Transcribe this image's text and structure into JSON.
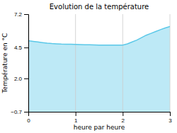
{
  "chart_data": {
    "type": "area",
    "title": "Evolution de la température",
    "x_label": "heure par heure",
    "y_label": "Température en °C",
    "x": [
      0,
      0.1,
      0.2,
      0.3,
      0.4,
      0.5,
      0.6,
      0.7,
      0.8,
      0.9,
      1.0,
      1.1,
      1.2,
      1.3,
      1.4,
      1.5,
      1.6,
      1.7,
      1.8,
      1.9,
      2.0,
      2.1,
      2.2,
      2.3,
      2.4,
      2.5,
      2.6,
      2.7,
      2.8,
      2.9,
      3.0
    ],
    "values": [
      5.05,
      5.0,
      4.95,
      4.9,
      4.85,
      4.82,
      4.8,
      4.78,
      4.77,
      4.76,
      4.75,
      4.74,
      4.73,
      4.72,
      4.71,
      4.7,
      4.7,
      4.7,
      4.7,
      4.7,
      4.7,
      4.8,
      4.95,
      5.1,
      5.3,
      5.5,
      5.65,
      5.8,
      5.95,
      6.08,
      6.2
    ],
    "color": "#5bc8e8",
    "xlim": [
      0,
      3
    ],
    "ylim": [
      -0.7,
      7.2
    ],
    "xticks": [
      0,
      1,
      2,
      3
    ],
    "yticks": [
      {
        "value": -0.7,
        "label": "−0.7"
      },
      {
        "value": 2.0,
        "label": "2.0"
      },
      4.5,
      7.2
    ],
    "grid": "x"
  }
}
